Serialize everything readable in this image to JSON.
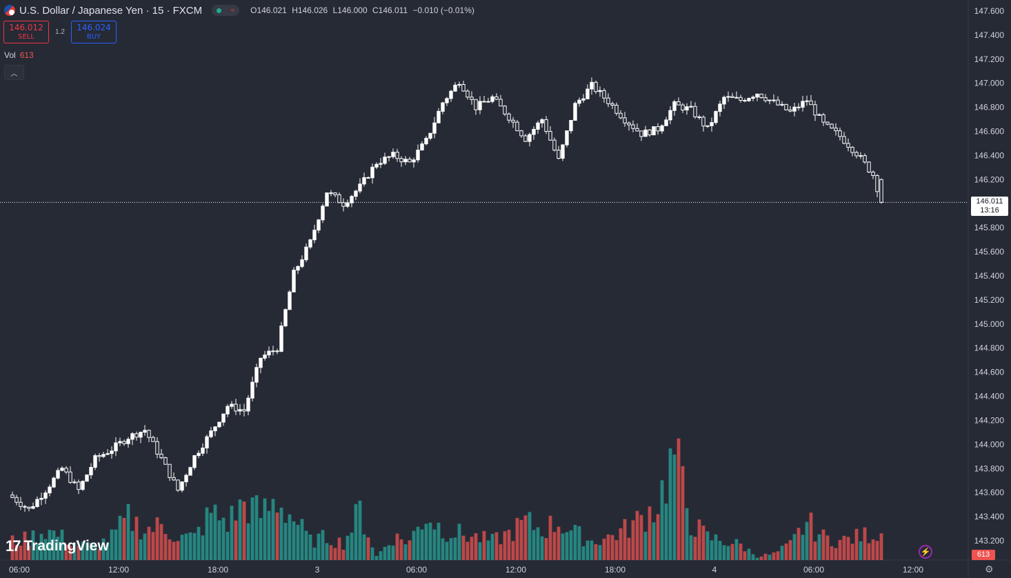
{
  "header": {
    "symbol_title": "U.S. Dollar / Japanese Yen · 15 · FXCM",
    "ohlc": {
      "open": "O146.021",
      "high": "H146.026",
      "low": "L146.000",
      "close": "C146.011",
      "change": "−0.010 (−0.01%)"
    },
    "market_status_icon": "open-dot-icon",
    "data_status_icon": "delayed-data-icon"
  },
  "trade": {
    "sell_price": "146.012",
    "sell_label": "SELL",
    "spread": "1.2",
    "buy_price": "146.024",
    "buy_label": "BUY"
  },
  "volume_legend": {
    "label": "Vol",
    "value": "613"
  },
  "watermark": {
    "mark": "17",
    "text": "TradingView"
  },
  "last_price": {
    "value": "146.011",
    "countdown": "13:16"
  },
  "last_volume": "613",
  "colors": {
    "background": "#262a35",
    "candle_up": "#ffffff",
    "candle_down": "#ffffff",
    "volume_up": "#26a69a",
    "volume_down": "#ef5350",
    "text": "#d1d4dc"
  },
  "chart_data": {
    "type": "candlestick",
    "y_ticks": [
      "147.600",
      "147.400",
      "147.200",
      "147.000",
      "146.800",
      "146.600",
      "146.400",
      "146.200",
      "146.000",
      "145.800",
      "145.600",
      "145.400",
      "145.200",
      "145.000",
      "144.800",
      "144.600",
      "144.400",
      "144.200",
      "144.000",
      "143.800",
      "143.600",
      "143.400",
      "143.200"
    ],
    "x_ticks": [
      "06:00",
      "12:00",
      "18:00",
      "3",
      "06:00",
      "12:00",
      "18:00",
      "4",
      "06:00",
      "12:00"
    ],
    "ylim": [
      143.0,
      147.65
    ],
    "interval_minutes": 15,
    "x_labels_at_bar_index": {
      "06:00": 0,
      "12:00": 24,
      "18:00": 48,
      "3": 72,
      "06:00 (3)": 96,
      "12:00 (3)": 120,
      "18:00 (3)": 144,
      "4": 168,
      "06:00 (4)": 192,
      "12:00 (4)": 216
    },
    "ohlc_anchor_closes": [
      [
        0,
        143.56
      ],
      [
        4,
        143.46
      ],
      [
        8,
        143.62
      ],
      [
        12,
        143.8
      ],
      [
        16,
        143.62
      ],
      [
        20,
        143.88
      ],
      [
        24,
        143.96
      ],
      [
        28,
        144.06
      ],
      [
        32,
        144.12
      ],
      [
        36,
        143.88
      ],
      [
        40,
        143.62
      ],
      [
        44,
        143.9
      ],
      [
        48,
        144.1
      ],
      [
        52,
        144.32
      ],
      [
        56,
        144.28
      ],
      [
        60,
        144.72
      ],
      [
        64,
        144.8
      ],
      [
        68,
        145.42
      ],
      [
        72,
        145.68
      ],
      [
        76,
        146.1
      ],
      [
        80,
        146.0
      ],
      [
        84,
        146.14
      ],
      [
        88,
        146.34
      ],
      [
        92,
        146.4
      ],
      [
        96,
        146.34
      ],
      [
        100,
        146.52
      ],
      [
        104,
        146.84
      ],
      [
        108,
        147.02
      ],
      [
        112,
        146.8
      ],
      [
        116,
        146.88
      ],
      [
        120,
        146.72
      ],
      [
        124,
        146.54
      ],
      [
        128,
        146.7
      ],
      [
        132,
        146.36
      ],
      [
        136,
        146.82
      ],
      [
        140,
        146.98
      ],
      [
        144,
        146.85
      ],
      [
        148,
        146.7
      ],
      [
        152,
        146.58
      ],
      [
        156,
        146.62
      ],
      [
        160,
        146.82
      ],
      [
        164,
        146.78
      ],
      [
        168,
        146.62
      ],
      [
        172,
        146.88
      ],
      [
        176,
        146.86
      ],
      [
        180,
        146.92
      ],
      [
        184,
        146.84
      ],
      [
        188,
        146.76
      ],
      [
        192,
        146.86
      ],
      [
        196,
        146.66
      ],
      [
        200,
        146.56
      ],
      [
        204,
        146.42
      ],
      [
        208,
        146.24
      ],
      [
        210,
        146.02
      ]
    ],
    "volume": [
      [
        0,
        25
      ],
      [
        4,
        28
      ],
      [
        8,
        40
      ],
      [
        12,
        30
      ],
      [
        16,
        20
      ],
      [
        20,
        18
      ],
      [
        24,
        30
      ],
      [
        28,
        55
      ],
      [
        32,
        40
      ],
      [
        36,
        45
      ],
      [
        40,
        30
      ],
      [
        44,
        30
      ],
      [
        48,
        62
      ],
      [
        52,
        50
      ],
      [
        56,
        75
      ],
      [
        60,
        60
      ],
      [
        64,
        78
      ],
      [
        68,
        55
      ],
      [
        72,
        25
      ],
      [
        76,
        30
      ],
      [
        80,
        22
      ],
      [
        84,
        65
      ],
      [
        88,
        5
      ],
      [
        92,
        30
      ],
      [
        96,
        25
      ],
      [
        100,
        60
      ],
      [
        104,
        40
      ],
      [
        108,
        35
      ],
      [
        112,
        30
      ],
      [
        116,
        25
      ],
      [
        120,
        35
      ],
      [
        124,
        50
      ],
      [
        128,
        40
      ],
      [
        132,
        50
      ],
      [
        136,
        35
      ],
      [
        140,
        25
      ],
      [
        144,
        30
      ],
      [
        148,
        40
      ],
      [
        152,
        55
      ],
      [
        156,
        75
      ],
      [
        160,
        140
      ],
      [
        164,
        50
      ],
      [
        168,
        30
      ],
      [
        172,
        25
      ],
      [
        176,
        20
      ],
      [
        180,
        5
      ],
      [
        184,
        8
      ],
      [
        188,
        20
      ],
      [
        192,
        50
      ],
      [
        196,
        30
      ],
      [
        200,
        25
      ],
      [
        204,
        30
      ],
      [
        208,
        35
      ]
    ]
  }
}
